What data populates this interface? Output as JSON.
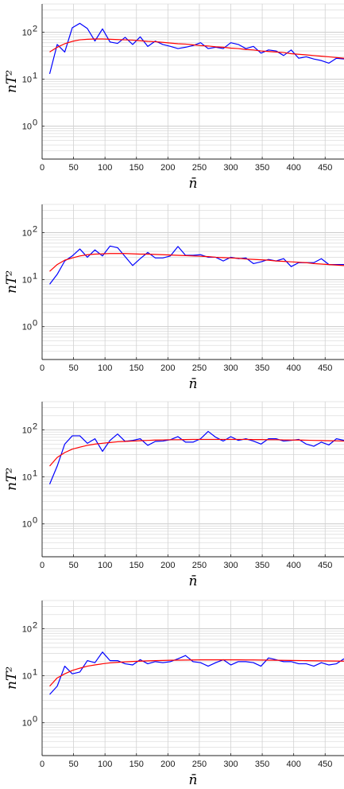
{
  "chart_data": [
    {
      "type": "line",
      "xlabel": "n̄",
      "ylabel": "nT²",
      "xlim": [
        0,
        480
      ],
      "ylim": [
        0.2,
        400
      ],
      "yscale": "log",
      "grid": true,
      "x_ticks": [
        0,
        50,
        100,
        150,
        200,
        250,
        300,
        350,
        400,
        450
      ],
      "x_tick_labels": [
        "0",
        "50",
        "100",
        "150",
        "200",
        "250",
        "300",
        "350",
        "400",
        "450"
      ],
      "y_ticks": [
        1,
        10,
        100
      ],
      "y_tick_labels": [
        "10^0",
        "10^1",
        "10^2"
      ],
      "series": [
        {
          "color": "#0000ff",
          "x": [
            12,
            24,
            36,
            48,
            60,
            72,
            84,
            96,
            108,
            120,
            132,
            144,
            156,
            168,
            180,
            192,
            204,
            216,
            228,
            240,
            252,
            264,
            276,
            288,
            300,
            312,
            324,
            336,
            348,
            360,
            372,
            384,
            396,
            408,
            420,
            432,
            444,
            456,
            468,
            480
          ],
          "values": [
            13,
            55,
            38,
            125,
            155,
            120,
            65,
            118,
            62,
            58,
            78,
            55,
            80,
            50,
            65,
            55,
            50,
            45,
            48,
            52,
            60,
            45,
            48,
            45,
            60,
            55,
            45,
            50,
            36,
            42,
            40,
            32,
            42,
            28,
            30,
            27,
            25,
            22,
            28,
            27
          ]
        },
        {
          "color": "#ff0000",
          "x": [
            12,
            24,
            36,
            48,
            60,
            72,
            84,
            96,
            108,
            120,
            132,
            144,
            156,
            168,
            180,
            192,
            204,
            216,
            228,
            240,
            252,
            264,
            276,
            288,
            300,
            312,
            324,
            336,
            348,
            360,
            372,
            384,
            396,
            408,
            420,
            432,
            444,
            456,
            468,
            480
          ],
          "values": [
            38,
            48,
            57,
            64,
            69,
            71,
            72,
            72,
            71,
            70,
            69,
            68,
            66,
            64,
            63,
            61,
            59,
            57,
            56,
            54,
            52,
            51,
            49,
            48,
            46,
            45,
            43,
            42,
            40,
            39,
            38,
            37,
            35,
            34,
            33,
            32,
            31,
            30,
            29,
            28
          ]
        }
      ]
    },
    {
      "type": "line",
      "xlabel": "n̄",
      "ylabel": "nT²",
      "xlim": [
        0,
        480
      ],
      "ylim": [
        0.2,
        400
      ],
      "yscale": "log",
      "grid": true,
      "x_ticks": [
        0,
        50,
        100,
        150,
        200,
        250,
        300,
        350,
        400,
        450
      ],
      "x_tick_labels": [
        "0",
        "50",
        "100",
        "150",
        "200",
        "250",
        "300",
        "350",
        "400",
        "450"
      ],
      "y_ticks": [
        1,
        10,
        100
      ],
      "y_tick_labels": [
        "10^0",
        "10^1",
        "10^2"
      ],
      "series": [
        {
          "color": "#0000ff",
          "x": [
            12,
            24,
            36,
            48,
            60,
            72,
            84,
            96,
            108,
            120,
            132,
            144,
            156,
            168,
            180,
            192,
            204,
            216,
            228,
            240,
            252,
            264,
            276,
            288,
            300,
            312,
            324,
            336,
            348,
            360,
            372,
            384,
            396,
            408,
            420,
            432,
            444,
            456,
            468,
            480
          ],
          "values": [
            8,
            13,
            25,
            32,
            45,
            30,
            43,
            32,
            52,
            48,
            31,
            20,
            28,
            38,
            29,
            29,
            32,
            51,
            33,
            33,
            34,
            30,
            30,
            25,
            30,
            28,
            29,
            22,
            24,
            27,
            25,
            28,
            19,
            23,
            23,
            23,
            28,
            21,
            21,
            21
          ]
        },
        {
          "color": "#ff0000",
          "x": [
            12,
            24,
            36,
            48,
            60,
            72,
            84,
            96,
            108,
            120,
            132,
            144,
            156,
            168,
            180,
            192,
            204,
            216,
            228,
            240,
            252,
            264,
            276,
            288,
            300,
            312,
            324,
            336,
            348,
            360,
            372,
            384,
            396,
            408,
            420,
            432,
            444,
            456,
            468,
            480
          ],
          "values": [
            15,
            21,
            26,
            29,
            32,
            34,
            35,
            35.5,
            36,
            36,
            36,
            35.5,
            35,
            35,
            34.5,
            34,
            33.5,
            33,
            32.5,
            32,
            31.5,
            31,
            30,
            29.5,
            29,
            28.5,
            27.5,
            27,
            26.5,
            26,
            25,
            24.5,
            24,
            23.5,
            23,
            22,
            21.5,
            21,
            20.5,
            20
          ]
        }
      ]
    },
    {
      "type": "line",
      "xlabel": "n̄",
      "ylabel": "nT²",
      "xlim": [
        0,
        480
      ],
      "ylim": [
        0.2,
        400
      ],
      "yscale": "log",
      "grid": true,
      "x_ticks": [
        0,
        50,
        100,
        150,
        200,
        250,
        300,
        350,
        400,
        450
      ],
      "x_tick_labels": [
        "0",
        "50",
        "100",
        "150",
        "200",
        "250",
        "300",
        "350",
        "400",
        "450"
      ],
      "y_ticks": [
        1,
        10,
        100
      ],
      "y_tick_labels": [
        "10^0",
        "10^1",
        "10^2"
      ],
      "series": [
        {
          "color": "#0000ff",
          "x": [
            12,
            24,
            36,
            48,
            60,
            72,
            84,
            96,
            108,
            120,
            132,
            144,
            156,
            168,
            180,
            192,
            204,
            216,
            228,
            240,
            252,
            264,
            276,
            288,
            300,
            312,
            324,
            336,
            348,
            360,
            372,
            384,
            396,
            408,
            420,
            432,
            444,
            456,
            468,
            480
          ],
          "values": [
            7,
            17,
            50,
            75,
            75,
            52,
            65,
            35,
            60,
            82,
            57,
            60,
            65,
            47,
            57,
            58,
            62,
            72,
            55,
            55,
            65,
            93,
            70,
            58,
            72,
            60,
            65,
            58,
            50,
            65,
            65,
            58,
            60,
            63,
            50,
            45,
            55,
            48,
            65,
            60
          ]
        },
        {
          "color": "#ff0000",
          "x": [
            12,
            24,
            36,
            48,
            60,
            72,
            84,
            96,
            108,
            120,
            132,
            144,
            156,
            168,
            180,
            192,
            204,
            216,
            228,
            240,
            252,
            264,
            276,
            288,
            300,
            312,
            324,
            336,
            348,
            360,
            372,
            384,
            396,
            408,
            420,
            432,
            444,
            456,
            468,
            480
          ],
          "values": [
            17,
            26,
            33,
            39,
            43,
            47,
            50,
            52,
            54,
            56,
            57,
            58,
            59,
            60,
            61,
            61.5,
            62,
            62,
            62.5,
            63,
            63,
            63,
            63,
            63,
            63,
            63,
            63,
            62.5,
            62.5,
            62,
            62,
            61.5,
            61,
            61,
            60.5,
            60,
            59.5,
            59,
            58.5,
            58
          ]
        }
      ]
    },
    {
      "type": "line",
      "xlabel": "n̄",
      "ylabel": "nT²",
      "xlim": [
        0,
        480
      ],
      "ylim": [
        0.2,
        400
      ],
      "yscale": "log",
      "grid": true,
      "x_ticks": [
        0,
        50,
        100,
        150,
        200,
        250,
        300,
        350,
        400,
        450
      ],
      "x_tick_labels": [
        "0",
        "50",
        "100",
        "150",
        "200",
        "250",
        "300",
        "350",
        "400",
        "450"
      ],
      "y_ticks": [
        1,
        10,
        100
      ],
      "y_tick_labels": [
        "10^0",
        "10^1",
        "10^2"
      ],
      "series": [
        {
          "color": "#0000ff",
          "x": [
            12,
            24,
            36,
            48,
            60,
            72,
            84,
            96,
            108,
            120,
            132,
            144,
            156,
            168,
            180,
            192,
            204,
            216,
            228,
            240,
            252,
            264,
            276,
            288,
            300,
            312,
            324,
            336,
            348,
            360,
            372,
            384,
            396,
            408,
            420,
            432,
            444,
            456,
            468,
            480
          ],
          "values": [
            4,
            6,
            16,
            11,
            12,
            21,
            19,
            32,
            21,
            21,
            18,
            17,
            22,
            18,
            20,
            19,
            20,
            23,
            27,
            20,
            19,
            16,
            19,
            22,
            17,
            20,
            20,
            19,
            16,
            24,
            22,
            20,
            20,
            18,
            18,
            16,
            19,
            17,
            18,
            23
          ]
        },
        {
          "color": "#ff0000",
          "x": [
            12,
            24,
            36,
            48,
            60,
            72,
            84,
            96,
            108,
            120,
            132,
            144,
            156,
            168,
            180,
            192,
            204,
            216,
            228,
            240,
            252,
            264,
            276,
            288,
            300,
            312,
            324,
            336,
            348,
            360,
            372,
            384,
            396,
            408,
            420,
            432,
            444,
            456,
            468,
            480
          ],
          "values": [
            6,
            9,
            11,
            13,
            14.5,
            16,
            17,
            18,
            18.8,
            19.3,
            19.8,
            20.2,
            20.5,
            20.8,
            21,
            21.2,
            21.4,
            21.5,
            21.6,
            21.7,
            21.8,
            21.8,
            21.8,
            21.8,
            21.8,
            21.8,
            21.7,
            21.7,
            21.6,
            21.5,
            21.4,
            21.3,
            21.2,
            21.1,
            21,
            20.9,
            20.8,
            20.7,
            20.6,
            20.5
          ]
        }
      ]
    }
  ]
}
